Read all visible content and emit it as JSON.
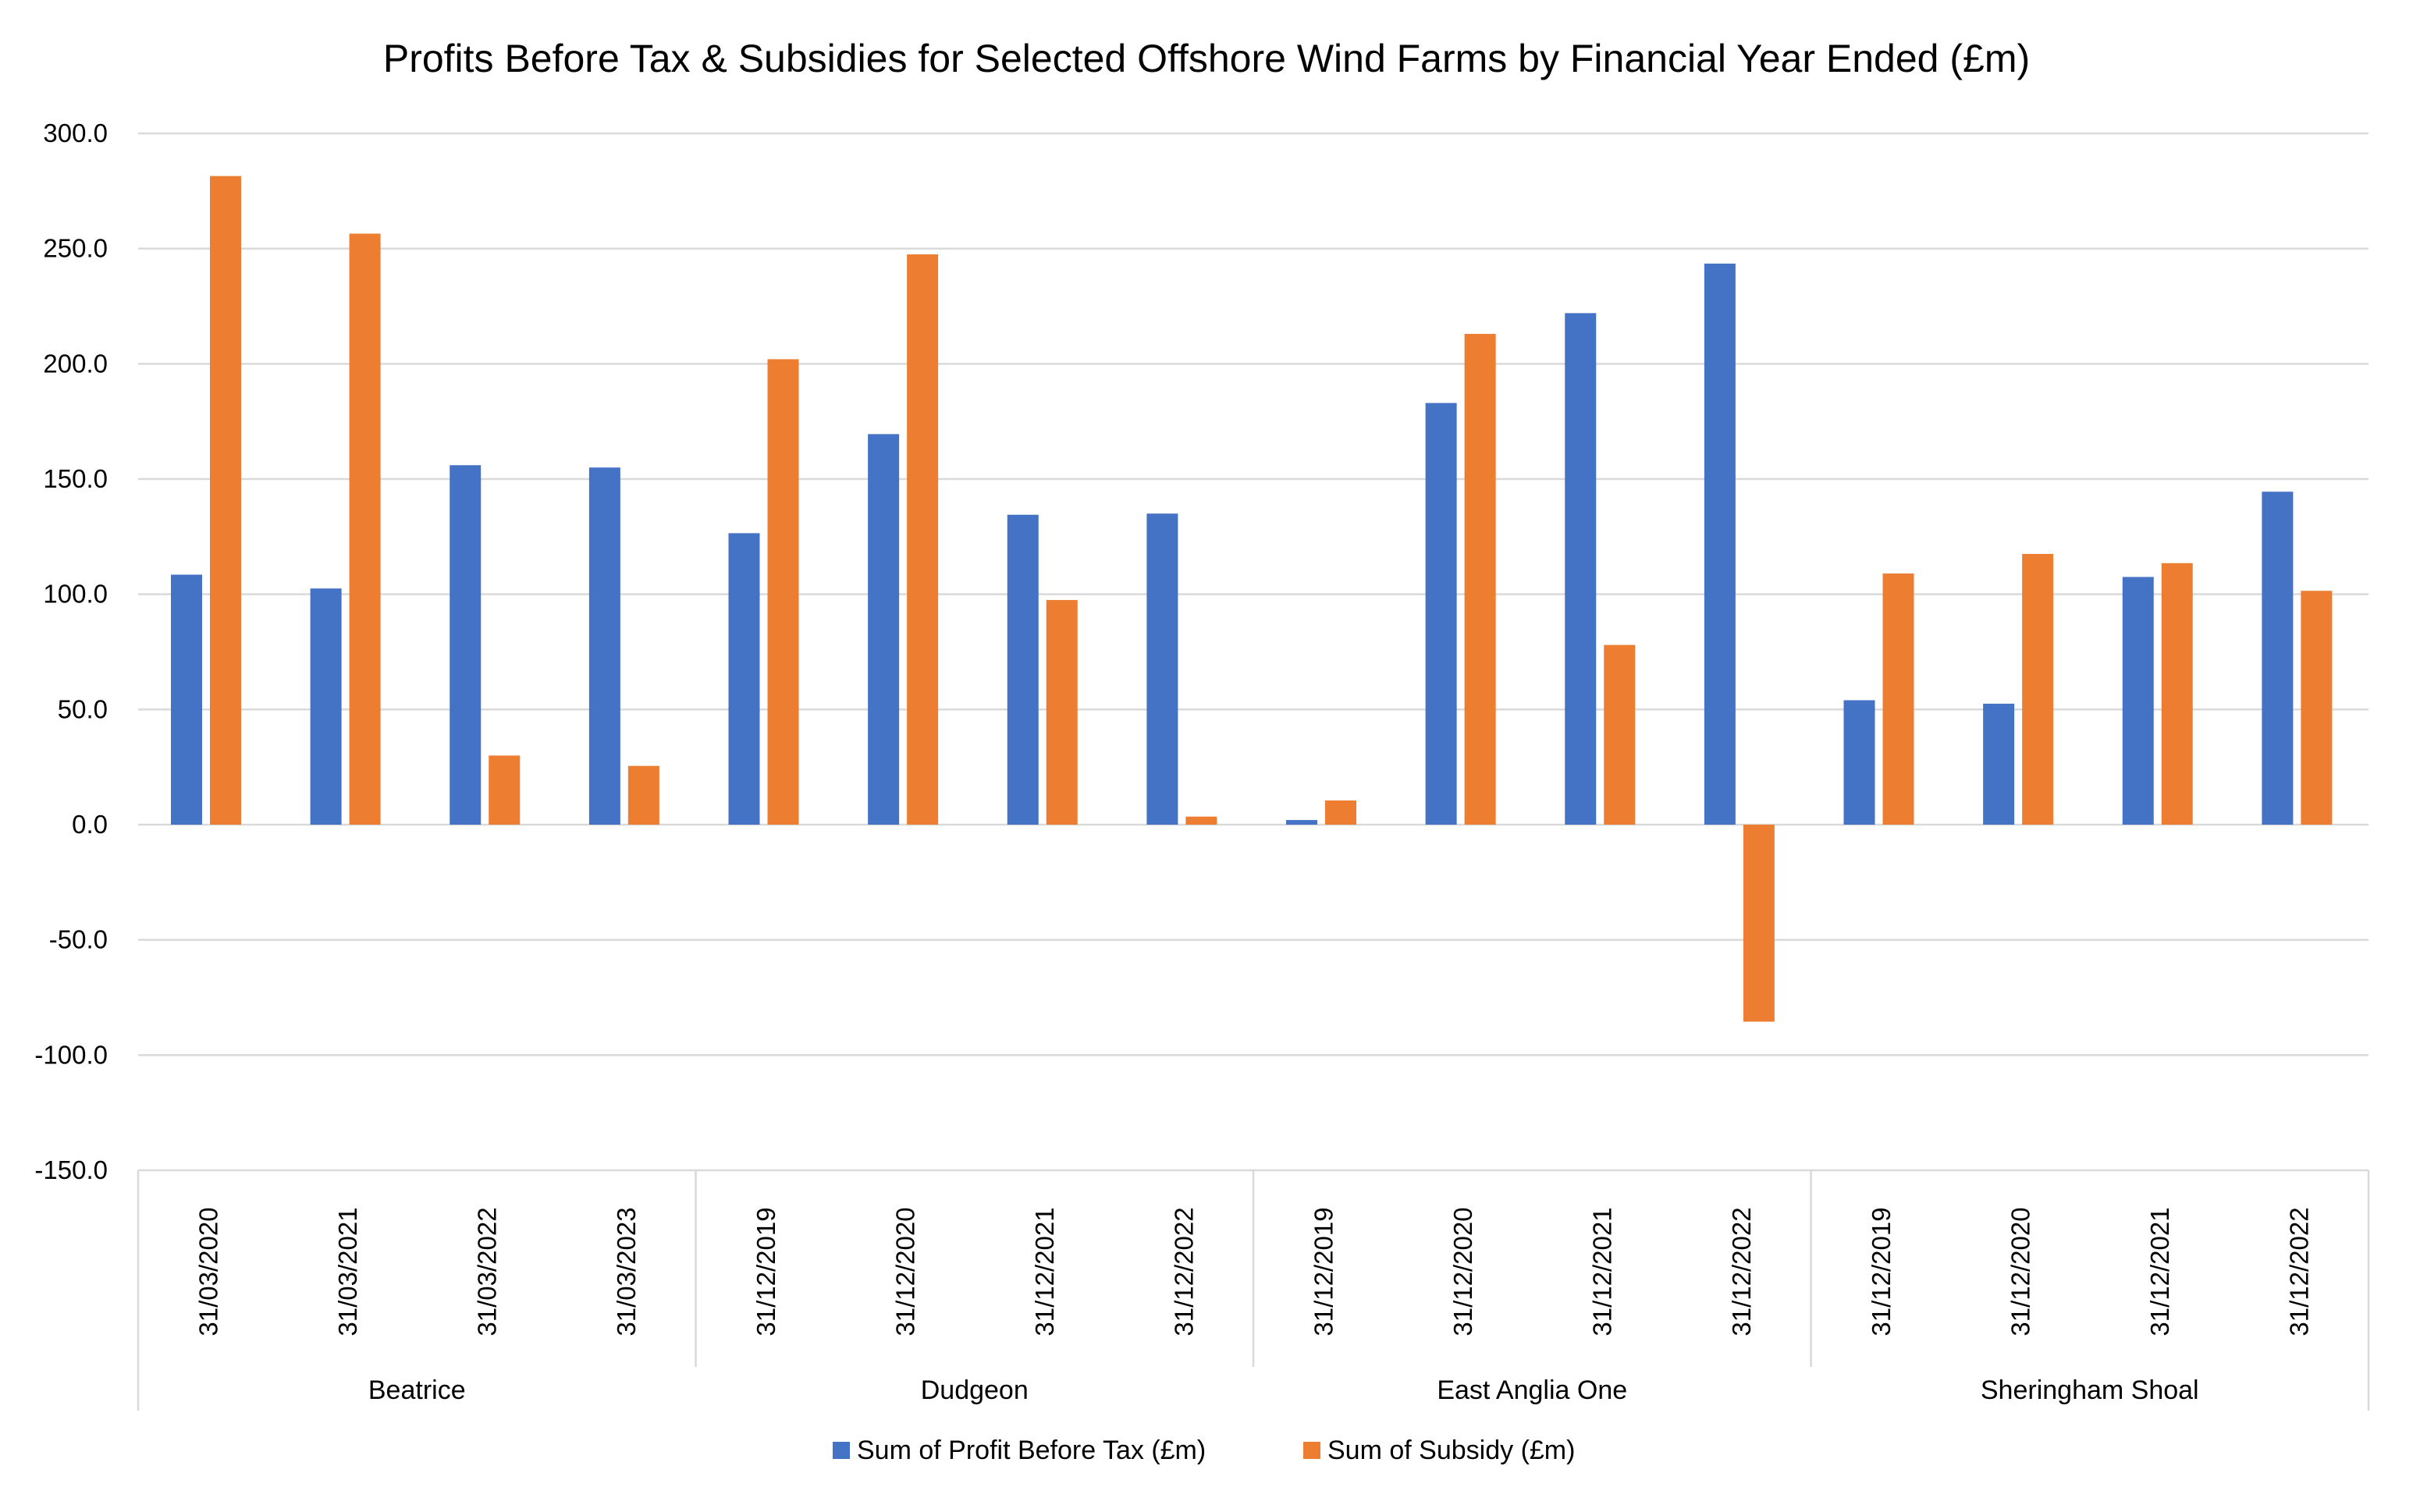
{
  "chart_data": {
    "type": "bar",
    "title": "Profits Before Tax & Subsidies for Selected Offshore Wind Farms by Financial Year Ended (£m)",
    "xlabel": "",
    "ylabel": "",
    "ylim": [
      -150,
      300
    ],
    "ytick_step": 50,
    "yticks": [
      "300.0",
      "250.0",
      "200.0",
      "150.0",
      "100.0",
      "50.0",
      "0.0",
      "-50.0",
      "-100.0",
      "-150.0"
    ],
    "grid": true,
    "legend_position": "bottom",
    "groups": [
      {
        "name": "Beatrice",
        "categories": [
          "31/03/2020",
          "31/03/2021",
          "31/03/2022",
          "31/03/2023"
        ]
      },
      {
        "name": "Dudgeon",
        "categories": [
          "31/12/2019",
          "31/12/2020",
          "31/12/2021",
          "31/12/2022"
        ]
      },
      {
        "name": "East Anglia One",
        "categories": [
          "31/12/2019",
          "31/12/2020",
          "31/12/2021",
          "31/12/2022"
        ]
      },
      {
        "name": "Sheringham Shoal",
        "categories": [
          "31/12/2019",
          "31/12/2020",
          "31/12/2021",
          "31/12/2022"
        ]
      }
    ],
    "series": [
      {
        "name": "Sum of Profit Before Tax (£m)",
        "color": "#4472C4",
        "values": [
          108.5,
          102.5,
          156.0,
          155.0,
          126.5,
          169.5,
          134.5,
          135.0,
          2.0,
          183.0,
          222.0,
          243.5,
          54.0,
          52.5,
          107.5,
          144.5
        ]
      },
      {
        "name": "Sum of Subsidy (£m)",
        "color": "#ED7D31",
        "values": [
          281.5,
          256.5,
          30.0,
          25.5,
          202.0,
          247.5,
          97.5,
          3.5,
          10.5,
          213.0,
          78.0,
          -85.5,
          109.0,
          117.5,
          113.5,
          101.5
        ]
      }
    ]
  }
}
